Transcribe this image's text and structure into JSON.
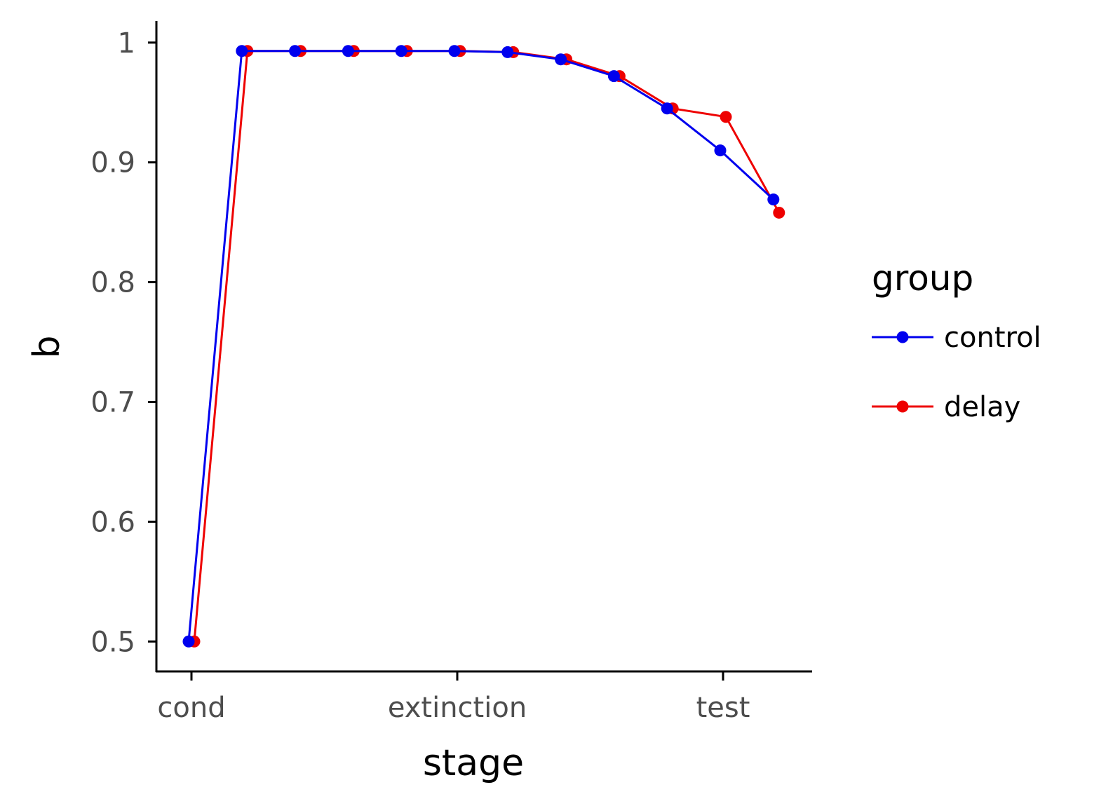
{
  "chart_data": {
    "type": "line",
    "xlabel": "stage",
    "ylabel": "b",
    "x_tick_labels": [
      "cond",
      "extinction",
      "test"
    ],
    "y_tick_labels": [
      "0.5",
      "0.6",
      "0.7",
      "0.8",
      "0.9",
      "1"
    ],
    "ylim": [
      0.475,
      1.018
    ],
    "grid": false,
    "legend": {
      "title": "group",
      "placement": "right"
    },
    "x": [
      0,
      1,
      2,
      3,
      4,
      5,
      6,
      7,
      8,
      9,
      10,
      11
    ],
    "series": [
      {
        "name": "control",
        "color": "#0000ee",
        "values": [
          0.5,
          0.993,
          0.993,
          0.993,
          0.993,
          0.993,
          0.992,
          0.986,
          0.972,
          0.945,
          0.91,
          0.869
        ]
      },
      {
        "name": "delay",
        "color": "#ee0000",
        "values": [
          0.5,
          0.993,
          0.993,
          0.993,
          0.993,
          0.993,
          0.992,
          0.986,
          0.972,
          0.945,
          0.938,
          0.858
        ]
      }
    ]
  }
}
